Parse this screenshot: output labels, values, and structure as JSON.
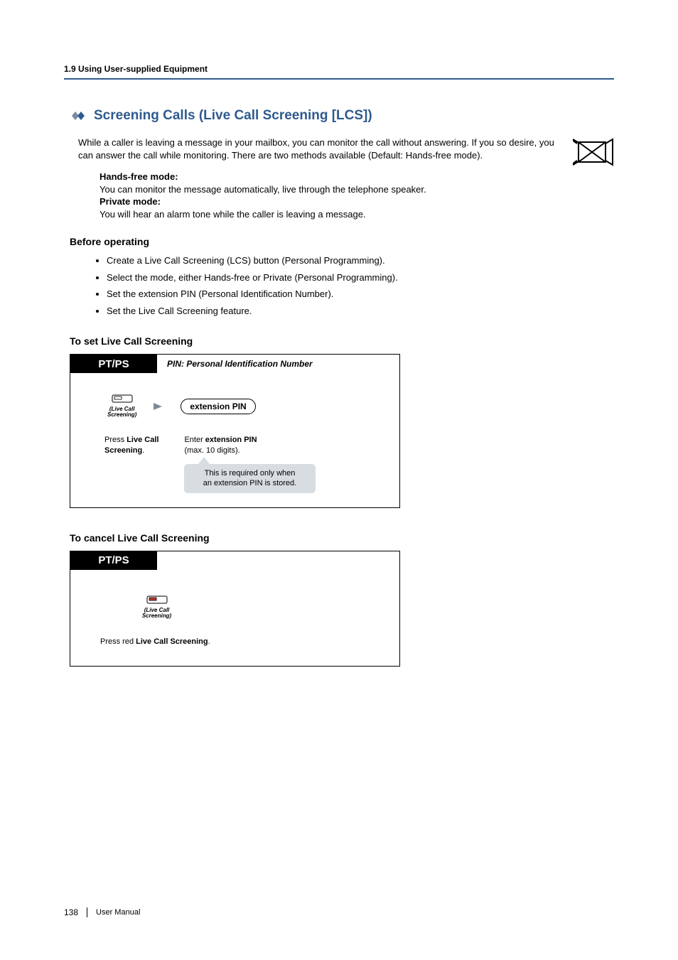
{
  "header": {
    "section": "1.9 Using User-supplied Equipment"
  },
  "title": "Screening Calls (Live Call Screening [LCS])",
  "intro": "While a caller is leaving a message in your mailbox, you can monitor the call without answering. If you so desire, you can answer the call while monitoring. There are two methods available (Default: Hands-free mode).",
  "modes": {
    "hands_free_title": "Hands-free mode:",
    "hands_free_body": "You can monitor the message automatically, live through the telephone speaker.",
    "private_title": "Private mode:",
    "private_body": "You will hear an alarm tone while the caller is leaving a message."
  },
  "before": {
    "heading": "Before operating",
    "items": [
      "Create a Live Call Screening (LCS) button (Personal Programming).",
      "Select the mode, either Hands-free or Private (Personal Programming).",
      "Set the extension PIN (Personal Identification Number).",
      "Set the Live Call Screening feature."
    ]
  },
  "set": {
    "heading": "To set Live Call Screening",
    "ptps": "PT/PS",
    "pin_label": "PIN: Personal Identification Number",
    "button_label_line1": "(Live Call",
    "button_label_line2": "Screening)",
    "pill": "extension PIN",
    "step1_pre": "Press ",
    "step1_b": "Live Call Screening",
    "step1_post": ".",
    "step2_pre": "Enter ",
    "step2_b": "extension PIN",
    "step2_post": "(max. 10 digits).",
    "callout_l1": "This is required only when",
    "callout_l2": "an extension PIN is stored."
  },
  "cancel": {
    "heading": "To cancel Live Call Screening",
    "ptps": "PT/PS",
    "button_label_line1": "(Live Call",
    "button_label_line2": "Screening)",
    "text_pre": "Press red ",
    "text_b": "Live Call Screening",
    "text_post": "."
  },
  "footer": {
    "page": "138",
    "label": "User Manual"
  },
  "colors": {
    "accent": "#2e5a8e",
    "callout_bg": "#d8dde2"
  }
}
